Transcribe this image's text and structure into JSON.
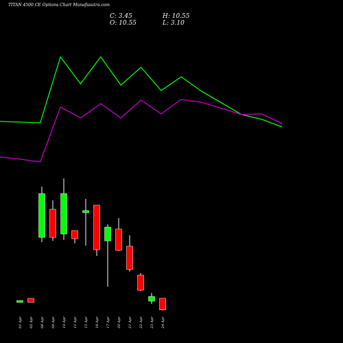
{
  "header": {
    "title": "TITAN 4500 CE Options Chart Munafasutra.com",
    "close": "C: 3.45",
    "high": "H: 10.55",
    "open": "O: 10.55",
    "low": "L: 3.10"
  },
  "chart_data": [
    {
      "type": "line",
      "ylim": [
        0,
        200
      ],
      "series": [
        {
          "name": "green-line",
          "color": "#00ff00",
          "values": [
            83,
            82,
            81,
            177,
            138,
            177,
            136,
            162,
            128,
            148,
            127,
            110,
            93,
            86,
            75
          ]
        },
        {
          "name": "purple-line",
          "color": "#cc00cc",
          "values": [
            31,
            28,
            24,
            104,
            88,
            109,
            88,
            114,
            94,
            115,
            111,
            102,
            93,
            94,
            80
          ]
        }
      ]
    },
    {
      "type": "candlestick",
      "ylim": [
        0,
        85
      ],
      "up_color": "#00ff00",
      "down_color": "#ff0000",
      "categories": [
        "01 Apr",
        "02 Apr",
        "08 Apr",
        "09 Apr",
        "10 Apr",
        "11 Apr",
        "15 Apr",
        "16 Apr",
        "17 Apr",
        "20 Apr",
        "21 Apr",
        "22 Apr",
        "23 Apr",
        "24 Apr"
      ],
      "open": [
        8.0,
        10.5,
        47.7,
        64.9,
        49.8,
        51.9,
        62.8,
        67.4,
        45.6,
        52.8,
        42.3,
        24.7,
        8.8,
        10.55
      ],
      "high": [
        9.2,
        10.5,
        78.7,
        70.3,
        83.7,
        51.9,
        71.2,
        67.4,
        55.7,
        59.5,
        49.0,
        26.0,
        13.8,
        10.55
      ],
      "low": [
        8.0,
        8.0,
        44.8,
        45.6,
        46.1,
        44.0,
        42.7,
        36.4,
        17.6,
        39.4,
        26.8,
        15.1,
        7.1,
        3.1
      ],
      "close": [
        9.2,
        8.0,
        74.5,
        47.7,
        74.5,
        46.9,
        64.1,
        40.2,
        54.0,
        39.8,
        28.1,
        15.5,
        11.7,
        3.45
      ]
    }
  ]
}
